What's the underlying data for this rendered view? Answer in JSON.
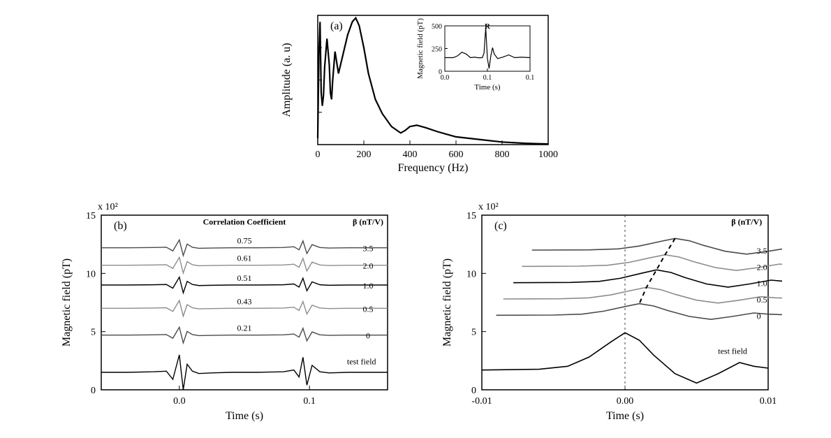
{
  "figure": {
    "panel_a": {
      "type": "line",
      "label": "(a)",
      "xlabel": "Frequency (Hz)",
      "ylabel": "Amplitude (a. u)",
      "label_fontsize": 16,
      "axis_fontsize": 14,
      "xlim": [
        0,
        1000
      ],
      "xtick_step": 200,
      "xticks": [
        0,
        200,
        400,
        600,
        800,
        1000
      ],
      "line_color": "#000000",
      "background_color": "#ffffff",
      "border_color": "#000000",
      "line_width": 2.2,
      "series": {
        "x": [
          0,
          5,
          10,
          15,
          20,
          25,
          30,
          40,
          50,
          55,
          60,
          65,
          75,
          90,
          110,
          130,
          150,
          165,
          180,
          200,
          220,
          250,
          280,
          320,
          360,
          380,
          400,
          430,
          470,
          520,
          600,
          700,
          800,
          900,
          1000
        ],
        "y": [
          5,
          70,
          95,
          40,
          30,
          38,
          60,
          82,
          62,
          40,
          35,
          50,
          72,
          55,
          70,
          85,
          95,
          98,
          92,
          75,
          55,
          35,
          24,
          14,
          9,
          11,
          14,
          15,
          13,
          10,
          6,
          4,
          2,
          1,
          0.5
        ]
      },
      "inset": {
        "type": "line",
        "xlabel": "Time (s)",
        "ylabel": "Magnetic field (pT)",
        "label_fontsize": 11,
        "axis_fontsize": 10,
        "xlim": [
          0.0,
          0.1
        ],
        "xticks": [
          0.0,
          0.05,
          0.1
        ],
        "ylim": [
          0,
          500
        ],
        "yticks": [
          0,
          250,
          500
        ],
        "line_color": "#000000",
        "line_width": 1.2,
        "r_marker_label": "R",
        "series": {
          "x": [
            0.0,
            0.01,
            0.015,
            0.02,
            0.025,
            0.03,
            0.035,
            0.04,
            0.044,
            0.046,
            0.048,
            0.05,
            0.052,
            0.054,
            0.056,
            0.058,
            0.062,
            0.068,
            0.075,
            0.082,
            0.09,
            0.1
          ],
          "y": [
            150,
            150,
            170,
            210,
            190,
            150,
            155,
            148,
            150,
            200,
            480,
            140,
            30,
            170,
            260,
            190,
            140,
            155,
            180,
            150,
            155,
            150
          ]
        }
      }
    },
    "panel_b": {
      "type": "line",
      "label": "(b)",
      "xlabel": "Time (s)",
      "ylabel": "Magnetic field (pT)",
      "y_scale_label": "x 10²",
      "label_fontsize": 16,
      "axis_fontsize": 14,
      "xlim": [
        -0.06,
        0.16
      ],
      "xticks": [
        0.0,
        0.1
      ],
      "ylim": [
        0,
        15
      ],
      "yticks": [
        0,
        5,
        10,
        15
      ],
      "background_color": "#ffffff",
      "border_color": "#000000",
      "line_width": 1.4,
      "column_headers": {
        "left": "Correlation Coefficient",
        "right": "β (nT/V)"
      },
      "test_field_label": "test field",
      "traces": [
        {
          "corr": "0.75",
          "beta": "3.5",
          "baseline": 12.2,
          "color": "#4a4a4a"
        },
        {
          "corr": "0.61",
          "beta": "2.0",
          "baseline": 10.7,
          "color": "#8c8c8c"
        },
        {
          "corr": "0.51",
          "beta": "1.0",
          "baseline": 9.0,
          "color": "#000000"
        },
        {
          "corr": "0.43",
          "beta": "0.5",
          "baseline": 7.0,
          "color": "#8c8c8c"
        },
        {
          "corr": "0.21",
          "beta": "0",
          "baseline": 4.7,
          "color": "#4a4a4a"
        }
      ],
      "test_field": {
        "baseline": 1.5,
        "color": "#000000"
      },
      "trace_template": {
        "dx": [
          -0.06,
          -0.04,
          -0.02,
          -0.01,
          -0.005,
          0.0,
          0.003,
          0.006,
          0.01,
          0.015,
          0.025,
          0.04,
          0.06,
          0.08,
          0.088,
          0.092,
          0.095,
          0.098,
          0.102,
          0.108,
          0.115,
          0.13,
          0.15,
          0.16
        ],
        "dy": [
          0.0,
          0.0,
          0.05,
          0.1,
          -0.6,
          1.5,
          -1.5,
          0.7,
          0.1,
          -0.1,
          -0.05,
          0.0,
          0.0,
          0.05,
          0.2,
          -0.4,
          1.3,
          -1.1,
          0.6,
          0.05,
          -0.05,
          0.0,
          0.0,
          0.0
        ]
      },
      "upper_template_scale": 0.45,
      "test_template_scale": 1.0
    },
    "panel_c": {
      "type": "line",
      "label": "(c)",
      "xlabel": "Time (s)",
      "ylabel": "Magnetic field (pT)",
      "y_scale_label": "x 10²",
      "label_fontsize": 16,
      "axis_fontsize": 14,
      "xlim": [
        -0.01,
        0.01
      ],
      "xticks": [
        -0.01,
        0.0,
        0.01
      ],
      "ylim": [
        0,
        15
      ],
      "yticks": [
        0,
        5,
        10,
        15
      ],
      "background_color": "#ffffff",
      "border_color": "#000000",
      "line_width": 1.6,
      "beta_header": "β (nT/V)",
      "test_field_label": "test field",
      "vline_x": 0.0,
      "vline_style": "dashed",
      "vline_color": "#404040",
      "peak_curve_color": "#000000",
      "peak_curve_style": "dashed",
      "traces": [
        {
          "beta": "3.5",
          "baseline": 12.0,
          "color": "#4a4a4a",
          "peak_x": 0.0035,
          "amp": 1.0
        },
        {
          "beta": "2.0",
          "baseline": 10.6,
          "color": "#8c8c8c",
          "peak_x": 0.0028,
          "amp": 1.0
        },
        {
          "beta": "1.0",
          "baseline": 9.2,
          "color": "#000000",
          "peak_x": 0.0022,
          "amp": 1.1
        },
        {
          "beta": "0.5",
          "baseline": 7.8,
          "color": "#8c8c8c",
          "peak_x": 0.0015,
          "amp": 1.0
        },
        {
          "beta": "0",
          "baseline": 6.4,
          "color": "#4a4a4a",
          "peak_x": 0.001,
          "amp": 1.0
        }
      ],
      "test_field": {
        "baseline": 1.7,
        "color": "#000000",
        "peak_x": 0.0,
        "amp": 3.2
      },
      "bump_template": {
        "dx": [
          -0.01,
          -0.006,
          -0.004,
          -0.0025,
          -0.001,
          0.0,
          0.001,
          0.002,
          0.0035,
          0.005,
          0.0065,
          0.008,
          0.009,
          0.01
        ],
        "dy": [
          0.0,
          0.02,
          0.1,
          0.35,
          0.75,
          1.0,
          0.8,
          0.4,
          -0.1,
          -0.35,
          -0.1,
          0.2,
          0.1,
          0.05
        ]
      }
    }
  }
}
